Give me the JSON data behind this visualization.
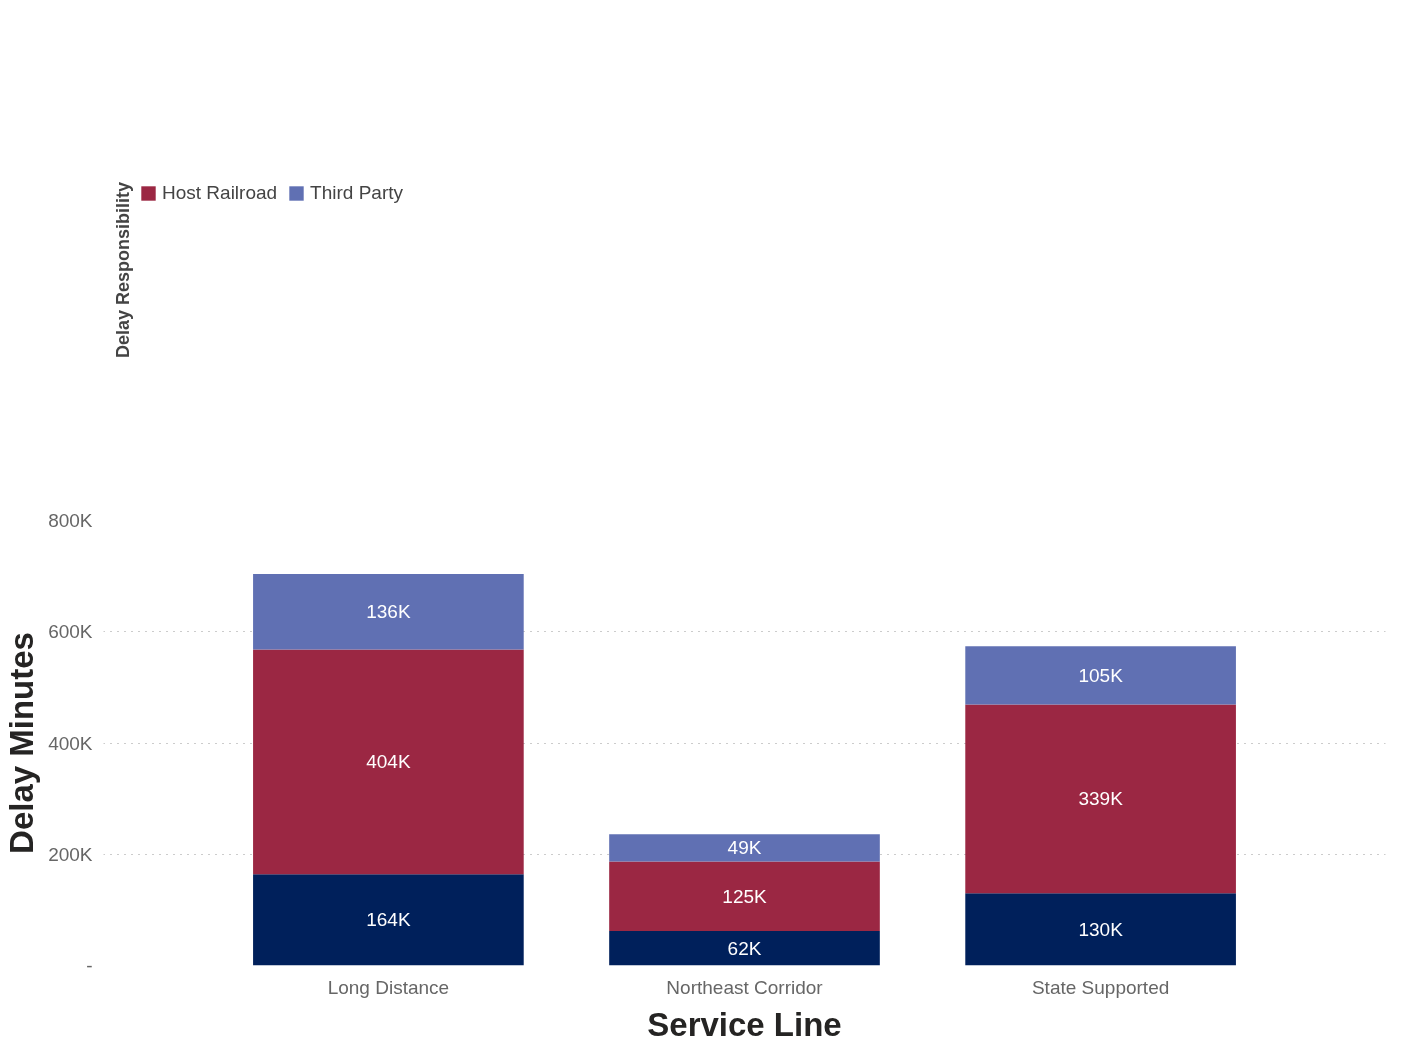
{
  "chart_data": {
    "type": "bar",
    "stacked": true,
    "xlabel": "Service Line",
    "ylabel": "Delay Minutes",
    "legend_title": "Delay Responsibility",
    "legend": "top left",
    "grid": "y",
    "categories": [
      "Long Distance",
      "Northeast Corridor",
      "State Supported"
    ],
    "ylim": [
      0,
      800000
    ],
    "yticks": [
      {
        "value": 0,
        "label": "-"
      },
      {
        "value": 200000,
        "label": "200K"
      },
      {
        "value": 400000,
        "label": "400K"
      },
      {
        "value": 600000,
        "label": "600K"
      },
      {
        "value": 800000,
        "label": "800K"
      }
    ],
    "series": [
      {
        "color": "#00205b",
        "values": [
          164000,
          62000,
          130000
        ],
        "value_labels": [
          "164K",
          "62K",
          "130K"
        ]
      },
      {
        "name": "Host Railroad",
        "color": "#9b2743",
        "values": [
          404000,
          125000,
          339000
        ],
        "value_labels": [
          "404K",
          "125K",
          "339K"
        ]
      },
      {
        "name": "Third Party",
        "color": "#6070b3",
        "values": [
          136000,
          49000,
          105000
        ],
        "value_labels": [
          "136K",
          "49K",
          "105K"
        ]
      }
    ]
  }
}
